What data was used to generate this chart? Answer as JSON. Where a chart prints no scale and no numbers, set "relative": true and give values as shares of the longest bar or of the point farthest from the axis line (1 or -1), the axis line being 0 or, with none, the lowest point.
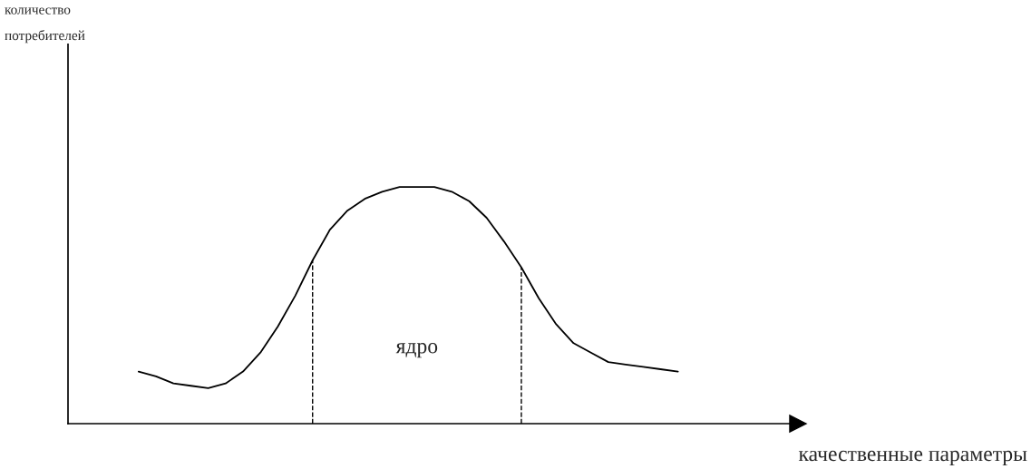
{
  "chart_data": {
    "type": "line",
    "relative": true,
    "annotations": [
      "количество\nпотребителей",
      "качественные параметры",
      "ядро"
    ],
    "legend": false,
    "marker": "none",
    "line_style": "solid",
    "categories": [
      null,
      null,
      null,
      null,
      null,
      null,
      null,
      null,
      null,
      null,
      null,
      null,
      null,
      null,
      null,
      null,
      null,
      null,
      null,
      null,
      null,
      null,
      null,
      null,
      null,
      null,
      null,
      null,
      null,
      null,
      null,
      null
    ],
    "series": [
      {
        "color": "#000000",
        "values": [
          0.22,
          0.2,
          0.17,
          0.16,
          0.15,
          0.17,
          0.22,
          0.3,
          0.41,
          0.54,
          0.69,
          0.82,
          0.9,
          0.95,
          0.98,
          1.0,
          1.0,
          1.0,
          0.98,
          0.94,
          0.87,
          0.77,
          0.66,
          0.53,
          0.42,
          0.34,
          0.3,
          0.26,
          0.25,
          0.24,
          0.23,
          0.22
        ]
      }
    ]
  }
}
